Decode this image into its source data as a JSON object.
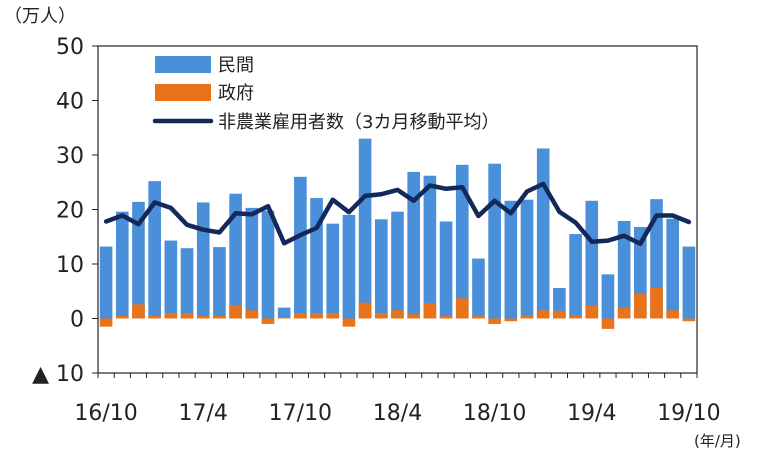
{
  "chart_data": {
    "type": "bar",
    "ylabel": "（万人）",
    "xunit": "(年/月)",
    "ylim": [
      -10,
      50
    ],
    "yticks": [
      {
        "value": 50,
        "label": "50"
      },
      {
        "value": 40,
        "label": "40"
      },
      {
        "value": 30,
        "label": "30"
      },
      {
        "value": 20,
        "label": "20"
      },
      {
        "value": 10,
        "label": "10"
      },
      {
        "value": 0,
        "label": "0"
      },
      {
        "value": -10,
        "label": "▲ 10"
      }
    ],
    "grid": false,
    "legend_position": "top-left",
    "categories": [
      "16/10",
      "16/11",
      "16/12",
      "17/1",
      "17/2",
      "17/3",
      "17/4",
      "17/5",
      "17/6",
      "17/7",
      "17/8",
      "17/9",
      "17/10",
      "17/11",
      "17/12",
      "18/1",
      "18/2",
      "18/3",
      "18/4",
      "18/5",
      "18/6",
      "18/7",
      "18/8",
      "18/9",
      "18/10",
      "18/11",
      "18/12",
      "19/1",
      "19/2",
      "19/3",
      "19/4",
      "19/5",
      "19/6",
      "19/7",
      "19/8",
      "19/9",
      "19/10"
    ],
    "xtick_labels": [
      "16/10",
      "17/4",
      "17/10",
      "18/4",
      "18/10",
      "19/4",
      "19/10"
    ],
    "series": [
      {
        "name": "民間",
        "kind": "bar",
        "color": "#4a8fd9",
        "values": [
          13.2,
          19.6,
          21.4,
          25.2,
          14.3,
          12.9,
          21.3,
          13.1,
          22.9,
          20.3,
          19.8,
          2.0,
          26.0,
          22.1,
          17.4,
          19.0,
          33.0,
          18.2,
          19.6,
          26.9,
          26.2,
          17.8,
          28.2,
          11.0,
          28.4,
          21.6,
          21.8,
          31.2,
          5.6,
          15.5,
          21.6,
          8.1,
          17.9,
          16.8,
          21.9,
          18.3,
          13.2
        ]
      },
      {
        "name": "政府",
        "kind": "bar",
        "color": "#e8731a",
        "values": [
          -1.5,
          0.5,
          2.6,
          0.5,
          1.0,
          1.0,
          0.5,
          0.5,
          2.4,
          1.5,
          -1.0,
          0.2,
          1.0,
          1.0,
          1.0,
          -1.5,
          2.9,
          1.0,
          1.5,
          0.8,
          2.8,
          0.5,
          3.7,
          0.5,
          -1.0,
          -0.5,
          0.5,
          1.5,
          1.4,
          0.5,
          2.4,
          -1.9,
          2.0,
          4.5,
          5.6,
          1.5,
          -0.5
        ]
      },
      {
        "name": "非農業雇用者数（3カ月移動平均）",
        "kind": "line",
        "color": "#14285a",
        "values": [
          17.8,
          18.9,
          17.3,
          21.3,
          20.3,
          17.2,
          16.3,
          15.8,
          19.3,
          19.1,
          20.6,
          13.8,
          15.3,
          16.6,
          21.8,
          19.5,
          22.5,
          22.8,
          23.6,
          21.6,
          24.4,
          23.8,
          24.1,
          18.8,
          21.6,
          19.3,
          23.3,
          24.7,
          19.6,
          17.6,
          14.1,
          14.3,
          15.2,
          13.7,
          18.9,
          18.9,
          17.7
        ]
      }
    ]
  }
}
